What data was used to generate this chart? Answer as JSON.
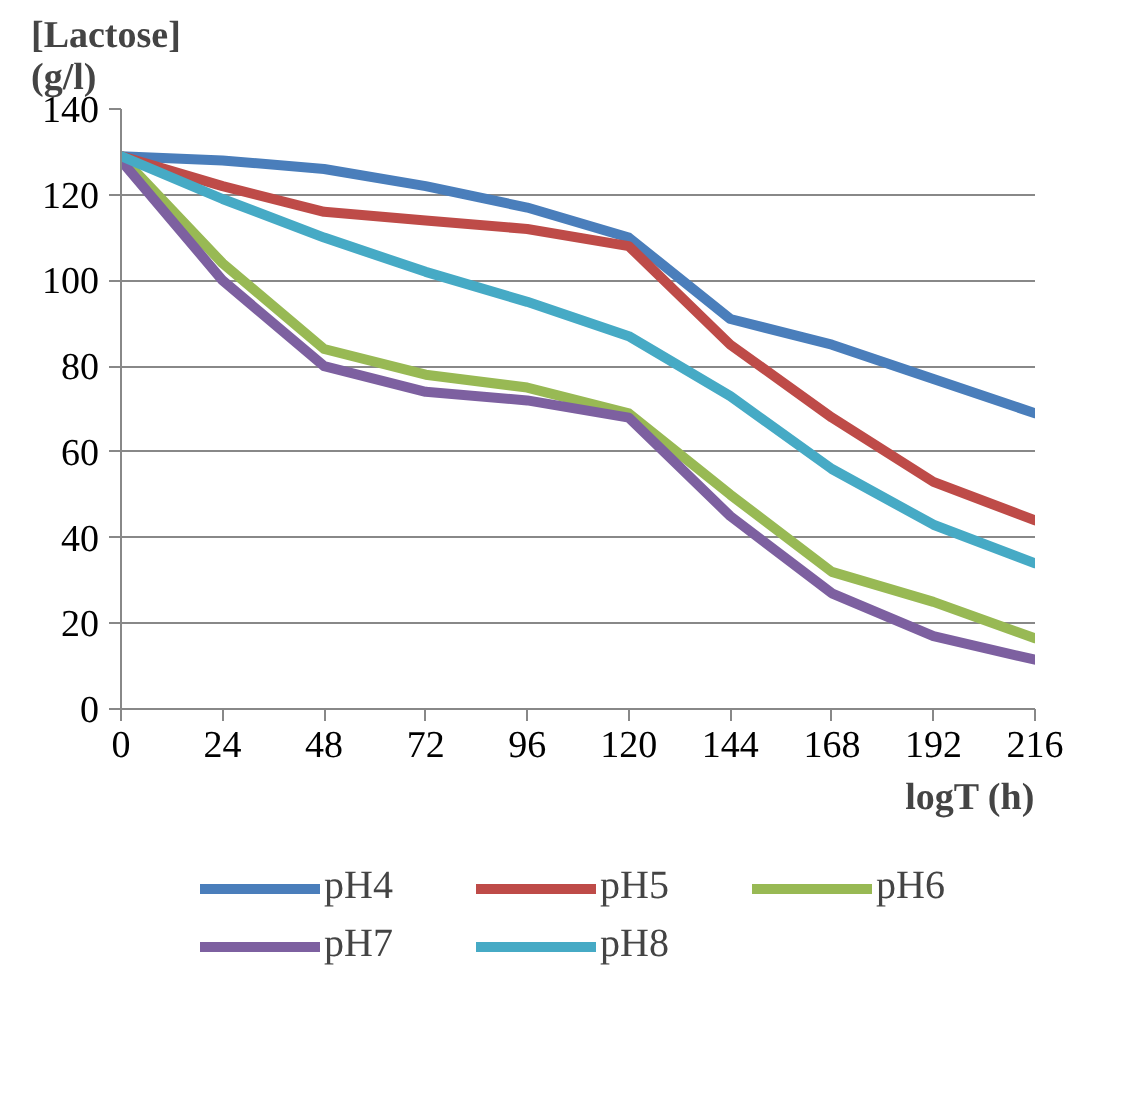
{
  "chart_data": {
    "type": "line",
    "xlabel": "logT (h)",
    "ylabel": "[Lactose]\n(g/l)",
    "x": [
      0,
      24,
      48,
      72,
      96,
      120,
      144,
      168,
      192,
      216
    ],
    "series": [
      {
        "name": "pH4",
        "color": "#4a7ebb",
        "values": [
          129,
          128,
          126,
          122,
          117,
          110,
          91,
          85,
          77,
          69
        ]
      },
      {
        "name": "pH5",
        "color": "#be4b48",
        "values": [
          129,
          122,
          116,
          114,
          112,
          108,
          85,
          68,
          53,
          44
        ]
      },
      {
        "name": "pH6",
        "color": "#98b954",
        "values": [
          129,
          104,
          84,
          78,
          75,
          69,
          50,
          32,
          25,
          16.5
        ]
      },
      {
        "name": "pH7",
        "color": "#7d60a0",
        "values": [
          128,
          100,
          80,
          74,
          72,
          68,
          45,
          27,
          17,
          11.5
        ]
      },
      {
        "name": "pH8",
        "color": "#46aac5",
        "values": [
          129,
          119,
          110,
          102,
          95,
          87,
          73,
          56,
          43,
          34
        ]
      }
    ],
    "xlim": [
      0,
      216
    ],
    "xticks": [
      0,
      24,
      48,
      72,
      96,
      120,
      144,
      168,
      192,
      216
    ],
    "ylim": [
      0,
      140
    ],
    "yticks": [
      0,
      20,
      40,
      60,
      80,
      100,
      120,
      140
    ],
    "grid": "y",
    "legend": "bottom",
    "marker": "none",
    "line_style": "solid"
  }
}
